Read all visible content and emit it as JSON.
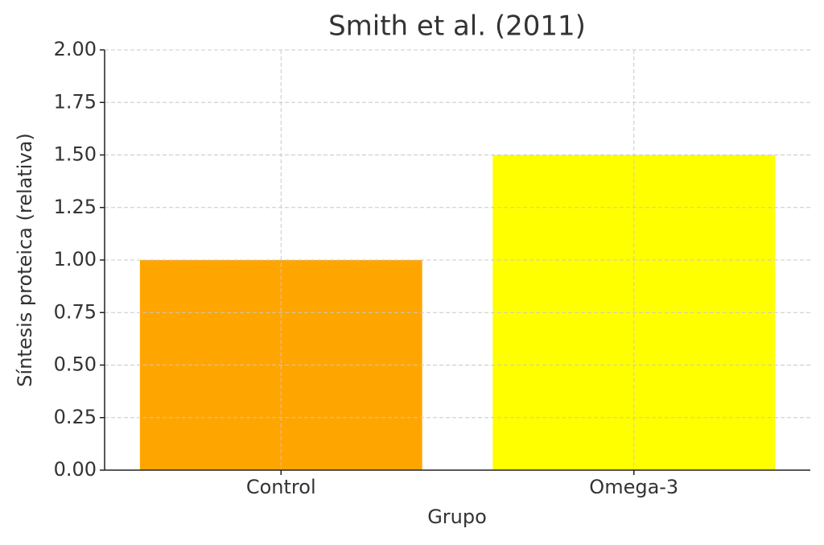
{
  "chart_data": {
    "type": "bar",
    "title": "Smith et al. (2011)",
    "x_label": "Grupo",
    "y_label": "Síntesis proteica (relativa)",
    "categories": [
      "Control",
      "Omega-3"
    ],
    "values": [
      1.0,
      1.5
    ],
    "colors": [
      "#ffa500",
      "#ffff00"
    ],
    "ylim": [
      0,
      2
    ],
    "yticks": [
      {
        "value": 0,
        "label": "0.00"
      },
      {
        "value": 0.25,
        "label": "0.25"
      },
      {
        "value": 0.5,
        "label": "0.50"
      },
      {
        "value": 0.75,
        "label": "0.75"
      },
      {
        "value": 1,
        "label": "1.00"
      },
      {
        "value": 1.25,
        "label": "1.25"
      },
      {
        "value": 1.5,
        "label": "1.50"
      },
      {
        "value": 1.75,
        "label": "1.75"
      },
      {
        "value": 2,
        "label": "2.00"
      }
    ],
    "grid": true
  }
}
